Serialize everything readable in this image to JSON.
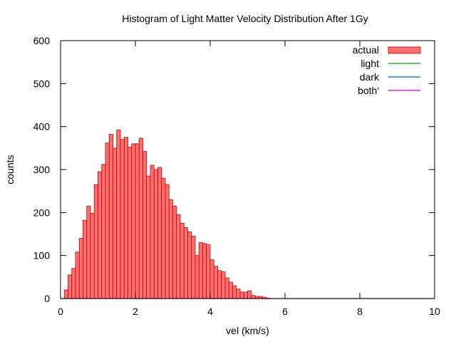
{
  "chart_data": {
    "type": "bar",
    "title": "Histogram of Light Matter Velocity Distribution After 1Gy",
    "xlabel": "vel (km/s)",
    "ylabel": "counts",
    "xlim": [
      0,
      10
    ],
    "ylim": [
      0,
      600
    ],
    "xticks": [
      "0",
      "2",
      "4",
      "6",
      "8",
      "10"
    ],
    "yticks": [
      "0",
      "100",
      "200",
      "300",
      "400",
      "500",
      "600"
    ],
    "grid": false,
    "legend_position": "top-right",
    "bin_width": 0.1,
    "bin_starts": [
      0.1,
      0.2,
      0.3,
      0.4,
      0.5,
      0.6,
      0.7,
      0.8,
      0.9,
      1.0,
      1.1,
      1.2,
      1.3,
      1.4,
      1.5,
      1.6,
      1.7,
      1.8,
      1.9,
      2.0,
      2.1,
      2.2,
      2.3,
      2.4,
      2.5,
      2.6,
      2.7,
      2.8,
      2.9,
      3.0,
      3.1,
      3.2,
      3.3,
      3.4,
      3.5,
      3.6,
      3.7,
      3.8,
      3.9,
      4.0,
      4.1,
      4.2,
      4.3,
      4.4,
      4.5,
      4.6,
      4.7,
      4.8,
      4.9,
      5.0,
      5.1,
      5.2,
      5.3,
      5.4,
      5.5
    ],
    "series": [
      {
        "name": "actual",
        "type": "histogram",
        "color": "#ff7070",
        "values": [
          20,
          55,
          70,
          108,
          140,
          182,
          215,
          198,
          265,
          295,
          312,
          362,
          382,
          350,
          392,
          370,
          375,
          352,
          360,
          360,
          373,
          342,
          285,
          310,
          300,
          305,
          280,
          265,
          230,
          215,
          195,
          175,
          165,
          155,
          145,
          100,
          130,
          128,
          125,
          90,
          75,
          65,
          62,
          48,
          38,
          30,
          22,
          15,
          15,
          18,
          7,
          5,
          5,
          3,
          1
        ]
      },
      {
        "name": "light",
        "type": "line",
        "color": "#00a000",
        "values": []
      },
      {
        "name": "dark",
        "type": "line",
        "color": "#0060ad",
        "values": []
      },
      {
        "name": "both'",
        "type": "line",
        "color": "#cc00cc",
        "x": [
          0,
          10
        ],
        "values": [
          0,
          0
        ]
      }
    ]
  }
}
